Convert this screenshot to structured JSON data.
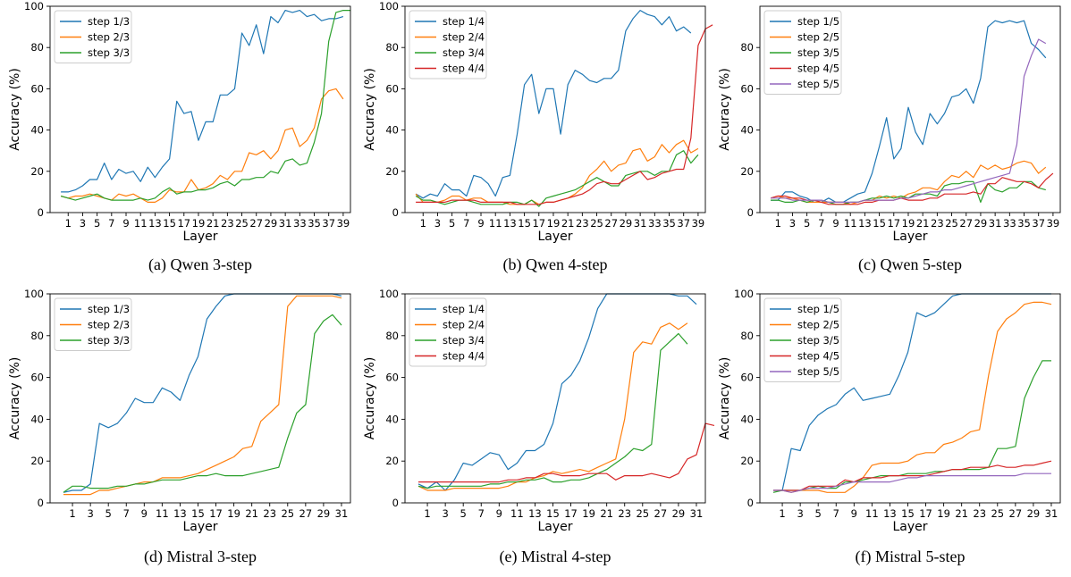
{
  "colors": {
    "step1": "#1f77b4",
    "step2": "#ff7f0e",
    "step3": "#2ca02c",
    "step4": "#d62728",
    "step5": "#9467bd"
  },
  "chart_data": [
    {
      "type": "line",
      "caption": "(a) Qwen 3-step",
      "xlabel": "Layer",
      "ylabel": "Accuracy (%)",
      "ylim": [
        0,
        100
      ],
      "yticks": [
        0,
        20,
        40,
        60,
        80,
        100
      ],
      "xticks": [
        1,
        3,
        5,
        7,
        9,
        11,
        13,
        15,
        17,
        19,
        21,
        23,
        25,
        27,
        29,
        31,
        33,
        35,
        37,
        39
      ],
      "x_start": 0,
      "legend_position": "top-left",
      "grid": false,
      "series": [
        {
          "name": "step 1/3",
          "values": [
            10,
            10,
            11,
            13,
            16,
            16,
            24,
            16,
            21,
            19,
            20,
            15,
            22,
            17,
            22,
            26,
            54,
            48,
            49,
            35,
            44,
            44,
            57,
            57,
            60,
            87,
            81,
            91,
            77,
            95,
            92,
            98,
            97,
            98,
            95,
            96,
            93,
            94,
            94,
            95
          ]
        },
        {
          "name": "step 2/3",
          "values": [
            8,
            7,
            8,
            8,
            9,
            8,
            7,
            6,
            9,
            8,
            9,
            7,
            5,
            5,
            7,
            11,
            10,
            10,
            16,
            11,
            12,
            14,
            18,
            16,
            20,
            20,
            29,
            28,
            30,
            26,
            30,
            40,
            41,
            32,
            35,
            41,
            55,
            59,
            60,
            55
          ]
        },
        {
          "name": "step 3/3",
          "values": [
            8,
            7,
            6,
            7,
            8,
            9,
            7,
            6,
            6,
            6,
            6,
            7,
            6,
            7,
            10,
            12,
            9,
            10,
            10,
            11,
            11,
            12,
            14,
            15,
            13,
            16,
            16,
            17,
            17,
            20,
            19,
            25,
            26,
            23,
            24,
            34,
            48,
            83,
            97,
            98,
            98
          ]
        }
      ]
    },
    {
      "type": "line",
      "caption": "(b) Qwen 4-step",
      "xlabel": "Layer",
      "ylabel": "Accuracy (%)",
      "ylim": [
        0,
        100
      ],
      "yticks": [
        0,
        20,
        40,
        60,
        80,
        100
      ],
      "xticks": [
        1,
        3,
        5,
        7,
        9,
        11,
        13,
        15,
        17,
        19,
        21,
        23,
        25,
        27,
        29,
        31,
        33,
        35,
        37,
        39
      ],
      "x_start": 0,
      "legend_position": "top-left",
      "grid": false,
      "series": [
        {
          "name": "step 1/4",
          "values": [
            9,
            7,
            9,
            8,
            14,
            11,
            11,
            8,
            18,
            17,
            14,
            8,
            17,
            18,
            38,
            62,
            67,
            48,
            60,
            60,
            38,
            62,
            69,
            67,
            64,
            63,
            65,
            65,
            69,
            88,
            94,
            98,
            96,
            95,
            91,
            95,
            88,
            90,
            87
          ]
        },
        {
          "name": "step 2/4",
          "values": [
            9,
            5,
            5,
            5,
            6,
            8,
            8,
            6,
            7,
            7,
            5,
            5,
            5,
            4,
            4,
            4,
            6,
            4,
            5,
            5,
            6,
            7,
            9,
            12,
            18,
            21,
            25,
            20,
            23,
            24,
            30,
            31,
            25,
            27,
            33,
            29,
            33,
            35,
            29,
            31
          ]
        },
        {
          "name": "step 3/4",
          "values": [
            8,
            6,
            6,
            5,
            4,
            5,
            6,
            6,
            5,
            4,
            4,
            4,
            4,
            5,
            5,
            4,
            6,
            3,
            7,
            8,
            9,
            10,
            11,
            13,
            15,
            17,
            15,
            13,
            13,
            18,
            19,
            20,
            20,
            18,
            20,
            20,
            28,
            30,
            24,
            28
          ]
        },
        {
          "name": "step 4/4",
          "values": [
            5,
            5,
            5,
            5,
            5,
            6,
            6,
            6,
            6,
            5,
            5,
            5,
            5,
            5,
            4,
            4,
            4,
            4,
            5,
            5,
            6,
            7,
            8,
            9,
            11,
            14,
            15,
            14,
            14,
            16,
            18,
            20,
            16,
            17,
            19,
            20,
            21,
            21,
            36,
            81,
            89,
            91
          ]
        }
      ]
    },
    {
      "type": "line",
      "caption": "(c) Qwen 5-step",
      "xlabel": "Layer",
      "ylabel": "Accuracy (%)",
      "ylim": [
        0,
        100
      ],
      "yticks": [
        0,
        20,
        40,
        60,
        80
      ],
      "xticks": [
        1,
        3,
        5,
        7,
        9,
        11,
        13,
        15,
        17,
        19,
        21,
        23,
        25,
        27,
        29,
        31,
        33,
        35,
        37,
        39
      ],
      "x_start": 0,
      "legend_position": "top-left",
      "grid": false,
      "series": [
        {
          "name": "step 1/5",
          "values": [
            6,
            6,
            10,
            10,
            8,
            7,
            5,
            5,
            7,
            5,
            5,
            7,
            9,
            10,
            19,
            32,
            46,
            26,
            31,
            51,
            39,
            33,
            48,
            43,
            48,
            56,
            57,
            60,
            53,
            65,
            90,
            93,
            92,
            93,
            92,
            93,
            82,
            79,
            75
          ]
        },
        {
          "name": "step 2/5",
          "values": [
            7,
            8,
            7,
            7,
            6,
            5,
            5,
            5,
            5,
            5,
            5,
            4,
            5,
            6,
            6,
            8,
            7,
            8,
            7,
            9,
            10,
            12,
            12,
            11,
            15,
            18,
            17,
            20,
            17,
            23,
            21,
            23,
            21,
            22,
            24,
            25,
            24,
            19,
            22
          ]
        },
        {
          "name": "step 3/5",
          "values": [
            6,
            6,
            5,
            5,
            6,
            5,
            6,
            6,
            5,
            4,
            4,
            5,
            5,
            6,
            7,
            7,
            8,
            7,
            8,
            7,
            9,
            9,
            9,
            8,
            13,
            14,
            14,
            15,
            15,
            5,
            14,
            11,
            10,
            12,
            12,
            15,
            15,
            12,
            11
          ]
        },
        {
          "name": "step 4/5",
          "values": [
            7,
            8,
            8,
            7,
            7,
            6,
            6,
            5,
            4,
            4,
            4,
            4,
            4,
            5,
            5,
            6,
            6,
            6,
            7,
            6,
            6,
            6,
            7,
            7,
            9,
            9,
            9,
            9,
            10,
            9,
            14,
            14,
            17,
            16,
            15,
            15,
            14,
            12,
            16,
            19
          ]
        },
        {
          "name": "step 5/5",
          "values": [
            7,
            7,
            7,
            6,
            6,
            6,
            6,
            6,
            5,
            5,
            5,
            5,
            5,
            6,
            6,
            6,
            6,
            6,
            7,
            7,
            8,
            9,
            10,
            10,
            11,
            11,
            12,
            13,
            14,
            15,
            16,
            17,
            18,
            19,
            33,
            66,
            76,
            84,
            82
          ]
        }
      ]
    },
    {
      "type": "line",
      "caption": "(d) Mistral 3-step",
      "xlabel": "Layer",
      "ylabel": "Accuracy (%)",
      "ylim": [
        0,
        100
      ],
      "yticks": [
        0,
        20,
        40,
        60,
        80,
        100
      ],
      "xticks": [
        1,
        3,
        5,
        7,
        9,
        11,
        13,
        15,
        17,
        19,
        21,
        23,
        25,
        27,
        29,
        31
      ],
      "x_start": 0,
      "legend_position": "top-left",
      "grid": false,
      "series": [
        {
          "name": "step 1/3",
          "values": [
            5,
            6,
            6,
            9,
            38,
            36,
            38,
            43,
            50,
            48,
            48,
            55,
            53,
            49,
            61,
            70,
            88,
            94,
            99,
            100,
            100,
            100,
            100,
            100,
            100,
            100,
            100,
            100,
            100,
            100,
            100,
            99
          ]
        },
        {
          "name": "step 2/3",
          "values": [
            4,
            4,
            4,
            4,
            6,
            6,
            7,
            8,
            9,
            10,
            10,
            12,
            12,
            12,
            13,
            14,
            16,
            18,
            20,
            22,
            26,
            27,
            39,
            43,
            47,
            94,
            99,
            99,
            99,
            99,
            99,
            98
          ]
        },
        {
          "name": "step 3/3",
          "values": [
            5,
            8,
            8,
            7,
            7,
            7,
            8,
            8,
            9,
            9,
            10,
            11,
            11,
            11,
            12,
            13,
            13,
            14,
            13,
            13,
            13,
            14,
            15,
            16,
            17,
            31,
            43,
            47,
            81,
            87,
            90,
            85
          ]
        }
      ]
    },
    {
      "type": "line",
      "caption": "(e) Mistral 4-step",
      "xlabel": "Layer",
      "ylabel": "Accuracy (%)",
      "ylim": [
        0,
        100
      ],
      "yticks": [
        0,
        20,
        40,
        60,
        80,
        100
      ],
      "xticks": [
        1,
        3,
        5,
        7,
        9,
        11,
        13,
        15,
        17,
        19,
        21,
        23,
        25,
        27,
        29,
        31
      ],
      "x_start": 0,
      "legend_position": "top-left",
      "grid": false,
      "series": [
        {
          "name": "step 1/4",
          "values": [
            9,
            7,
            10,
            6,
            11,
            19,
            18,
            21,
            24,
            23,
            16,
            19,
            25,
            25,
            28,
            38,
            57,
            61,
            68,
            79,
            93,
            100,
            100,
            100,
            100,
            100,
            100,
            100,
            100,
            99,
            99,
            95
          ]
        },
        {
          "name": "step 2/4",
          "values": [
            8,
            6,
            6,
            6,
            7,
            7,
            7,
            7,
            7,
            7,
            8,
            10,
            10,
            12,
            13,
            15,
            14,
            15,
            16,
            15,
            17,
            19,
            21,
            40,
            72,
            77,
            76,
            84,
            86,
            83,
            86
          ]
        },
        {
          "name": "step 3/4",
          "values": [
            8,
            7,
            8,
            8,
            8,
            8,
            8,
            8,
            9,
            9,
            10,
            10,
            11,
            11,
            12,
            10,
            10,
            11,
            11,
            12,
            14,
            16,
            19,
            22,
            26,
            25,
            28,
            73,
            77,
            81,
            76
          ]
        },
        {
          "name": "step 4/4",
          "values": [
            10,
            10,
            10,
            10,
            10,
            10,
            10,
            10,
            10,
            10,
            11,
            11,
            12,
            12,
            14,
            14,
            13,
            13,
            13,
            14,
            14,
            14,
            11,
            13,
            13,
            13,
            14,
            13,
            12,
            14,
            21,
            23,
            38,
            37
          ]
        }
      ]
    },
    {
      "type": "line",
      "caption": "(f) Mistral 5-step",
      "xlabel": "Layer",
      "ylabel": "Accuracy (%)",
      "ylim": [
        0,
        100
      ],
      "yticks": [
        0,
        20,
        40,
        60,
        80,
        100
      ],
      "xticks": [
        1,
        3,
        5,
        7,
        9,
        11,
        13,
        15,
        17,
        19,
        21,
        23,
        25,
        27,
        29,
        31
      ],
      "x_start": 0,
      "legend_position": "top-left",
      "grid": false,
      "series": [
        {
          "name": "step 1/5",
          "values": [
            6,
            6,
            26,
            25,
            37,
            42,
            45,
            47,
            52,
            55,
            49,
            50,
            51,
            52,
            61,
            72,
            91,
            89,
            91,
            95,
            99,
            100,
            100,
            100,
            100,
            100,
            100,
            100,
            100,
            100,
            100,
            100
          ]
        },
        {
          "name": "step 2/5",
          "values": [
            6,
            6,
            5,
            6,
            6,
            6,
            5,
            5,
            5,
            8,
            12,
            18,
            19,
            19,
            19,
            20,
            23,
            24,
            24,
            28,
            29,
            31,
            34,
            35,
            61,
            82,
            88,
            91,
            95,
            96,
            96,
            95
          ]
        },
        {
          "name": "step 3/5",
          "values": [
            5,
            6,
            6,
            6,
            7,
            8,
            7,
            7,
            10,
            10,
            11,
            12,
            13,
            13,
            13,
            14,
            14,
            14,
            15,
            15,
            16,
            16,
            16,
            16,
            17,
            26,
            26,
            27,
            50,
            60,
            68,
            68
          ]
        },
        {
          "name": "step 4/5",
          "values": [
            6,
            6,
            6,
            6,
            8,
            8,
            8,
            8,
            11,
            10,
            12,
            12,
            12,
            13,
            13,
            13,
            13,
            13,
            14,
            15,
            16,
            16,
            17,
            17,
            17,
            18,
            17,
            17,
            18,
            18,
            19,
            20
          ]
        },
        {
          "name": "step 5/5",
          "values": [
            6,
            6,
            5,
            6,
            7,
            7,
            7,
            8,
            9,
            10,
            10,
            10,
            10,
            10,
            11,
            12,
            12,
            13,
            13,
            13,
            13,
            13,
            13,
            13,
            13,
            13,
            13,
            13,
            14,
            14,
            14,
            14
          ]
        }
      ]
    }
  ]
}
